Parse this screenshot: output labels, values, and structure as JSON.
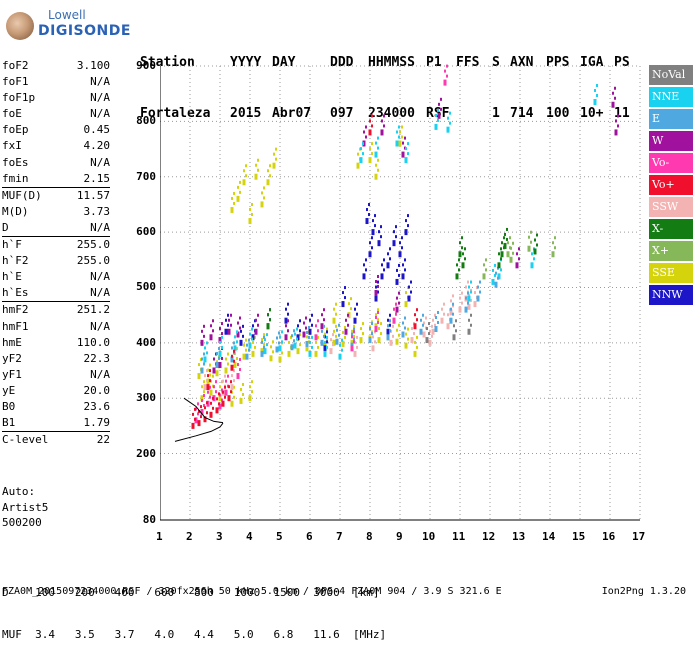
{
  "logo": {
    "top": "Lowell",
    "bottom": "DIGISONDE"
  },
  "header": {
    "labels": [
      "Station",
      "YYYY",
      "DAY",
      "DDD",
      "HHMMSS",
      "P1",
      "FFS",
      "S",
      "AXN",
      "PPS",
      "IGA",
      "PS"
    ],
    "values": [
      "Fortaleza",
      "2015",
      "Abr07",
      "097",
      "234000",
      "RSF",
      "",
      "1",
      "714",
      "100",
      "10+",
      "11"
    ]
  },
  "params": {
    "group1": [
      {
        "label": "foF2",
        "value": "3.100"
      },
      {
        "label": "foF1",
        "value": "N/A"
      },
      {
        "label": "foF1p",
        "value": "N/A"
      },
      {
        "label": "foE",
        "value": "N/A"
      },
      {
        "label": "foEp",
        "value": "0.45"
      },
      {
        "label": "fxI",
        "value": "4.20"
      },
      {
        "label": "foEs",
        "value": "N/A"
      },
      {
        "label": "fmin",
        "value": "2.15"
      }
    ],
    "group2": [
      {
        "label": "MUF(D)",
        "value": "11.57"
      },
      {
        "label": "M(D)",
        "value": "3.73"
      },
      {
        "label": "D",
        "value": "N/A"
      }
    ],
    "group3": [
      {
        "label": "h`F",
        "value": "255.0"
      },
      {
        "label": "h`F2",
        "value": "255.0"
      },
      {
        "label": "h`E",
        "value": "N/A"
      },
      {
        "label": "h`Es",
        "value": "N/A"
      }
    ],
    "group4": [
      {
        "label": "hmF2",
        "value": "251.2"
      },
      {
        "label": "hmF1",
        "value": "N/A"
      },
      {
        "label": "hmE",
        "value": "110.0"
      },
      {
        "label": "yF2",
        "value": "22.3"
      },
      {
        "label": "yF1",
        "value": "N/A"
      },
      {
        "label": "yE",
        "value": "20.0"
      },
      {
        "label": "B0",
        "value": "23.6"
      },
      {
        "label": "B1",
        "value": "1.79"
      }
    ],
    "group5": [
      {
        "label": "C-level",
        "value": "22"
      }
    ]
  },
  "auto": {
    "line1": "Auto:",
    "line2": "Artist5",
    "line3": "500200"
  },
  "legend": [
    {
      "label": "NoVal",
      "color": "#808080"
    },
    {
      "label": "NNE",
      "color": "#19d2f0"
    },
    {
      "label": "E",
      "color": "#4fa8e0"
    },
    {
      "label": "W",
      "color": "#a0129e"
    },
    {
      "label": "Vo-",
      "color": "#ff3ab0"
    },
    {
      "label": "Vo+",
      "color": "#f0102e"
    },
    {
      "label": "SSW",
      "color": "#f4b3b3"
    },
    {
      "label": "X-",
      "color": "#137d13"
    },
    {
      "label": "X+",
      "color": "#86b85a"
    },
    {
      "label": "SSE",
      "color": "#d5d40c"
    },
    {
      "label": "NNW",
      "color": "#1c16c8"
    }
  ],
  "dscale": {
    "d_label": "D",
    "d_values": [
      "100",
      "200",
      "400",
      "600",
      "800",
      "1000",
      "1500",
      "3000"
    ],
    "d_unit": "[km]",
    "muf_label": "MUF",
    "muf_values": [
      "3.4",
      "3.5",
      "3.7",
      "4.0",
      "4.4",
      "5.0",
      "6.8",
      "11.6"
    ],
    "muf_unit": "[MHz]"
  },
  "footer": {
    "left": "FZA0M_2015097234000.RSF / 320fx256h 50 kHz 5.0 km / DPS-4 FZA0M 904 / 3.9 S 321.6 E",
    "right": "Ion2Png 1.3.20"
  },
  "chart_data": {
    "type": "scatter",
    "title": "",
    "xlabel": "",
    "ylabel": "",
    "xlim": [
      1,
      17
    ],
    "ylim": [
      80,
      900
    ],
    "x_ticks": [
      "1",
      "2",
      "3",
      "4",
      "5",
      "6",
      "7",
      "8",
      "9",
      "10",
      "11",
      "12",
      "13",
      "14",
      "15",
      "16",
      "17"
    ],
    "y_ticks": [
      "80",
      "200",
      "300",
      "400",
      "500",
      "600",
      "700",
      "800",
      "900"
    ],
    "grid": "dotted",
    "series": [
      {
        "name": "SSE",
        "color": "#d5d40c",
        "points": [
          [
            2.3,
            340
          ],
          [
            2.6,
            330
          ],
          [
            2.9,
            345
          ],
          [
            3.2,
            350
          ],
          [
            3.5,
            360
          ],
          [
            3.8,
            375
          ],
          [
            4.1,
            380
          ],
          [
            4.4,
            385
          ],
          [
            4.7,
            372
          ],
          [
            5.0,
            370
          ],
          [
            5.3,
            380
          ],
          [
            5.6,
            385
          ],
          [
            5.9,
            390
          ],
          [
            6.2,
            380
          ],
          [
            6.5,
            395
          ],
          [
            6.8,
            400
          ],
          [
            7.1,
            398
          ],
          [
            7.4,
            400
          ],
          [
            7.7,
            405
          ],
          [
            8.0,
            408
          ],
          [
            8.3,
            405
          ],
          [
            8.6,
            410
          ],
          [
            8.9,
            402
          ],
          [
            9.2,
            395
          ],
          [
            9.5,
            380
          ],
          [
            3.4,
            640
          ],
          [
            3.6,
            660
          ],
          [
            3.8,
            690
          ],
          [
            4.0,
            620
          ],
          [
            4.2,
            700
          ],
          [
            4.4,
            650
          ],
          [
            4.6,
            690
          ],
          [
            4.8,
            720
          ],
          [
            3.0,
            300
          ],
          [
            3.4,
            290
          ],
          [
            3.7,
            295
          ],
          [
            4.0,
            300
          ],
          [
            7.6,
            720
          ],
          [
            8.0,
            730
          ],
          [
            8.2,
            700
          ],
          [
            9.0,
            760
          ],
          [
            6.8,
            440
          ],
          [
            7.3,
            450
          ],
          [
            8.2,
            430
          ],
          [
            8.8,
            440
          ],
          [
            9.2,
            470
          ],
          [
            2.4,
            300
          ],
          [
            2.7,
            310
          ]
        ]
      },
      {
        "name": "NNW",
        "color": "#1c16c8",
        "points": [
          [
            7.8,
            520
          ],
          [
            8.0,
            560
          ],
          [
            8.1,
            600
          ],
          [
            8.2,
            480
          ],
          [
            8.4,
            520
          ],
          [
            8.6,
            540
          ],
          [
            8.9,
            510
          ],
          [
            9.0,
            560
          ],
          [
            9.2,
            600
          ],
          [
            9.3,
            480
          ],
          [
            8.6,
            420
          ],
          [
            7.1,
            470
          ],
          [
            7.9,
            620
          ],
          [
            8.8,
            580
          ],
          [
            5.2,
            440
          ],
          [
            4.6,
            430
          ],
          [
            3.2,
            420
          ],
          [
            3.7,
            400
          ],
          [
            6.0,
            420
          ],
          [
            6.5,
            390
          ],
          [
            5.6,
            410
          ],
          [
            9.1,
            520
          ],
          [
            8.3,
            580
          ],
          [
            7.5,
            440
          ],
          [
            4.1,
            410
          ]
        ]
      },
      {
        "name": "W",
        "color": "#a0129e",
        "points": [
          [
            2.4,
            400
          ],
          [
            2.7,
            410
          ],
          [
            3.0,
            405
          ],
          [
            3.3,
            420
          ],
          [
            3.6,
            415
          ],
          [
            4.2,
            420
          ],
          [
            5.2,
            410
          ],
          [
            5.8,
            415
          ],
          [
            6.4,
            430
          ],
          [
            7.8,
            760
          ],
          [
            8.4,
            780
          ],
          [
            9.1,
            740
          ],
          [
            7.2,
            420
          ],
          [
            8.2,
            490
          ],
          [
            16.1,
            830
          ],
          [
            16.2,
            780
          ],
          [
            12.9,
            540
          ],
          [
            10.3,
            810
          ],
          [
            3.0,
            360
          ],
          [
            2.8,
            350
          ],
          [
            8.9,
            460
          ]
        ]
      },
      {
        "name": "SSW",
        "color": "#f4b3b3",
        "points": [
          [
            9.8,
            415
          ],
          [
            10.1,
            420
          ],
          [
            10.4,
            440
          ],
          [
            10.7,
            455
          ],
          [
            11.0,
            460
          ],
          [
            11.3,
            465
          ],
          [
            11.5,
            470
          ],
          [
            10.0,
            400
          ],
          [
            10.6,
            430
          ],
          [
            11.2,
            480
          ],
          [
            2.8,
            300
          ],
          [
            3.1,
            310
          ],
          [
            3.4,
            320
          ],
          [
            7.5,
            380
          ],
          [
            8.1,
            390
          ],
          [
            8.7,
            400
          ],
          [
            9.4,
            405
          ],
          [
            6.7,
            385
          ],
          [
            2.5,
            320
          ]
        ]
      },
      {
        "name": "NNE",
        "color": "#19d2f0",
        "points": [
          [
            2.5,
            370
          ],
          [
            3.0,
            380
          ],
          [
            3.5,
            390
          ],
          [
            4.0,
            395
          ],
          [
            4.5,
            385
          ],
          [
            5.0,
            390
          ],
          [
            5.5,
            395
          ],
          [
            6.0,
            380
          ],
          [
            6.5,
            380
          ],
          [
            7.0,
            375
          ],
          [
            7.7,
            730
          ],
          [
            8.2,
            740
          ],
          [
            8.9,
            760
          ],
          [
            9.2,
            730
          ],
          [
            10.6,
            785
          ],
          [
            11.3,
            480
          ],
          [
            12.1,
            510
          ],
          [
            12.3,
            520
          ],
          [
            13.4,
            540
          ],
          [
            15.5,
            835
          ],
          [
            10.2,
            790
          ]
        ]
      },
      {
        "name": "E",
        "color": "#4fa8e0",
        "points": [
          [
            2.4,
            350
          ],
          [
            2.9,
            360
          ],
          [
            3.4,
            370
          ],
          [
            3.9,
            375
          ],
          [
            4.4,
            380
          ],
          [
            4.9,
            388
          ],
          [
            5.4,
            392
          ],
          [
            5.9,
            398
          ],
          [
            6.4,
            400
          ],
          [
            6.9,
            402
          ],
          [
            7.4,
            395
          ],
          [
            8.0,
            405
          ],
          [
            8.6,
            410
          ],
          [
            9.1,
            415
          ],
          [
            9.7,
            420
          ],
          [
            10.2,
            425
          ],
          [
            10.7,
            440
          ],
          [
            11.2,
            460
          ],
          [
            11.6,
            480
          ],
          [
            12.2,
            505
          ]
        ]
      },
      {
        "name": "Vo-",
        "color": "#ff3ab0",
        "points": [
          [
            2.2,
            260
          ],
          [
            2.4,
            275
          ],
          [
            2.6,
            290
          ],
          [
            2.8,
            300
          ],
          [
            3.0,
            285
          ],
          [
            3.2,
            310
          ],
          [
            6.2,
            410
          ],
          [
            7.4,
            390
          ],
          [
            8.2,
            425
          ],
          [
            8.8,
            440
          ],
          [
            10.5,
            870
          ],
          [
            3.6,
            340
          ]
        ]
      },
      {
        "name": "Vo+",
        "color": "#f0102e",
        "points": [
          [
            2.1,
            250
          ],
          [
            2.3,
            255
          ],
          [
            2.5,
            262
          ],
          [
            2.7,
            270
          ],
          [
            2.9,
            278
          ],
          [
            3.1,
            290
          ],
          [
            3.3,
            300
          ],
          [
            2.6,
            320
          ],
          [
            3.4,
            355
          ],
          [
            9.5,
            430
          ],
          [
            8.0,
            780
          ]
        ]
      },
      {
        "name": "X-",
        "color": "#137d13",
        "points": [
          [
            10.9,
            520
          ],
          [
            11.1,
            540
          ],
          [
            12.4,
            560
          ],
          [
            12.5,
            575
          ],
          [
            13.5,
            565
          ],
          [
            11.0,
            560
          ],
          [
            12.3,
            540
          ],
          [
            4.6,
            430
          ]
        ]
      },
      {
        "name": "X+",
        "color": "#86b85a",
        "points": [
          [
            12.6,
            560
          ],
          [
            14.1,
            560
          ],
          [
            12.7,
            550
          ],
          [
            13.3,
            570
          ],
          [
            11.8,
            520
          ]
        ]
      },
      {
        "name": "NoVal",
        "color": "#808080",
        "points": [
          [
            11.3,
            420
          ],
          [
            10.8,
            410
          ],
          [
            9.9,
            405
          ]
        ]
      }
    ],
    "profile_curve": [
      [
        1.5,
        222
      ],
      [
        2.2,
        232
      ],
      [
        2.7,
        240
      ],
      [
        3.0,
        248
      ],
      [
        3.1,
        255
      ]
    ],
    "profile_curve2": [
      [
        1.8,
        300
      ],
      [
        2.2,
        285
      ],
      [
        2.5,
        265
      ],
      [
        2.8,
        258
      ],
      [
        3.1,
        256
      ]
    ]
  }
}
